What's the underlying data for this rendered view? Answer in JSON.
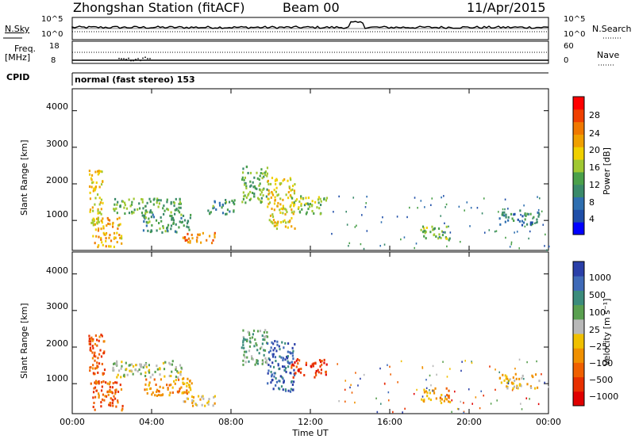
{
  "header": {
    "station": "Zhongshan Station (fitACF)",
    "beam": "Beam 00",
    "date": "11/Apr/2015"
  },
  "summary_panels": {
    "nsky_label": "N.Sky",
    "nsky_ticks": [
      "10^5",
      "10^0"
    ],
    "nsearch_label": "N.Search",
    "nsearch_ticks": [
      "10^5",
      "10^0"
    ],
    "freq_label_1": "Freq.",
    "freq_label_2": "[MHz]",
    "freq_ticks": [
      "18",
      "8"
    ],
    "nave_label": "Nave",
    "nave_ticks": [
      "60",
      "0"
    ],
    "cpid_label": "CPID",
    "cpid_text": "normal (fast stereo) 153"
  },
  "chart_data": [
    {
      "type": "heatmap",
      "name": "power-panel",
      "ylabel": "Slant Range [km]",
      "yticks": [
        "4000",
        "3000",
        "2000",
        "1000"
      ],
      "ylim": [
        180,
        4600
      ],
      "xlim": [
        0,
        24
      ],
      "colorbar_label": "Power [dB]",
      "colorbar_ticks": [
        "28",
        "24",
        "20",
        "16",
        "12",
        "8",
        "4"
      ],
      "colorbar_range": [
        0,
        30
      ],
      "colors": [
        "#0000ff",
        "#1f4ea8",
        "#2f6fb0",
        "#3a8a6a",
        "#4aa04a",
        "#a0c832",
        "#f0d000",
        "#f0a000",
        "#f07800",
        "#f04000",
        "#ff0000"
      ],
      "scatter_regions": [
        {
          "t": [
            0.8,
            1.5
          ],
          "r": [
            900,
            2400
          ],
          "level": 18
        },
        {
          "t": [
            1.0,
            2.5
          ],
          "r": [
            300,
            1100
          ],
          "level": 20
        },
        {
          "t": [
            2.0,
            5.5
          ],
          "r": [
            1200,
            1650
          ],
          "level": 12
        },
        {
          "t": [
            3.5,
            6.0
          ],
          "r": [
            700,
            1200
          ],
          "level": 10
        },
        {
          "t": [
            5.5,
            7.2
          ],
          "r": [
            400,
            700
          ],
          "level": 22
        },
        {
          "t": [
            6.8,
            8.2
          ],
          "r": [
            1200,
            1600
          ],
          "level": 10
        },
        {
          "t": [
            8.5,
            9.8
          ],
          "r": [
            1500,
            2500
          ],
          "level": 12
        },
        {
          "t": [
            9.8,
            11.2
          ],
          "r": [
            800,
            2200
          ],
          "level": 18
        },
        {
          "t": [
            11.0,
            12.8
          ],
          "r": [
            1200,
            1700
          ],
          "level": 14
        },
        {
          "t": [
            17.5,
            19.0
          ],
          "r": [
            500,
            900
          ],
          "level": 14
        },
        {
          "t": [
            21.5,
            23.5
          ],
          "r": [
            900,
            1300
          ],
          "level": 8
        }
      ]
    },
    {
      "type": "heatmap",
      "name": "velocity-panel",
      "ylabel": "Slant Range [km]",
      "yticks": [
        "4000",
        "3000",
        "2000",
        "1000"
      ],
      "ylim": [
        180,
        4600
      ],
      "xlim": [
        0,
        24
      ],
      "xticks": [
        "00:00",
        "04:00",
        "08:00",
        "12:00",
        "16:00",
        "20:00",
        "00:00"
      ],
      "xlabel": "Time UT",
      "colorbar_label": "Velocity [m s⁻¹]",
      "colorbar_ticks": [
        "1000",
        "500",
        "100",
        "25",
        "−25",
        "−100",
        "−500",
        "−1000"
      ],
      "colors": [
        "#2a3fa8",
        "#3f6ab8",
        "#3c8c7c",
        "#5aa050",
        "#b8b8b8",
        "#f0c000",
        "#f09000",
        "#f06000",
        "#e83000",
        "#e00000"
      ],
      "scatter_regions": [
        {
          "t": [
            0.8,
            1.6
          ],
          "r": [
            900,
            2400
          ],
          "level": 7
        },
        {
          "t": [
            1.0,
            2.5
          ],
          "r": [
            300,
            1100
          ],
          "level": 7
        },
        {
          "t": [
            2.0,
            5.5
          ],
          "r": [
            1200,
            1650
          ],
          "level": 4
        },
        {
          "t": [
            3.5,
            6.0
          ],
          "r": [
            700,
            1200
          ],
          "level": 6
        },
        {
          "t": [
            5.5,
            7.2
          ],
          "r": [
            400,
            700
          ],
          "level": 5
        },
        {
          "t": [
            8.5,
            9.8
          ],
          "r": [
            1500,
            2500
          ],
          "level": 3
        },
        {
          "t": [
            9.8,
            11.2
          ],
          "r": [
            800,
            2200
          ],
          "level": 1
        },
        {
          "t": [
            11.0,
            12.8
          ],
          "r": [
            1200,
            1700
          ],
          "level": 8
        },
        {
          "t": [
            17.5,
            19.0
          ],
          "r": [
            500,
            900
          ],
          "level": 6
        },
        {
          "t": [
            21.5,
            23.5
          ],
          "r": [
            900,
            1300
          ],
          "level": 5
        }
      ]
    }
  ]
}
